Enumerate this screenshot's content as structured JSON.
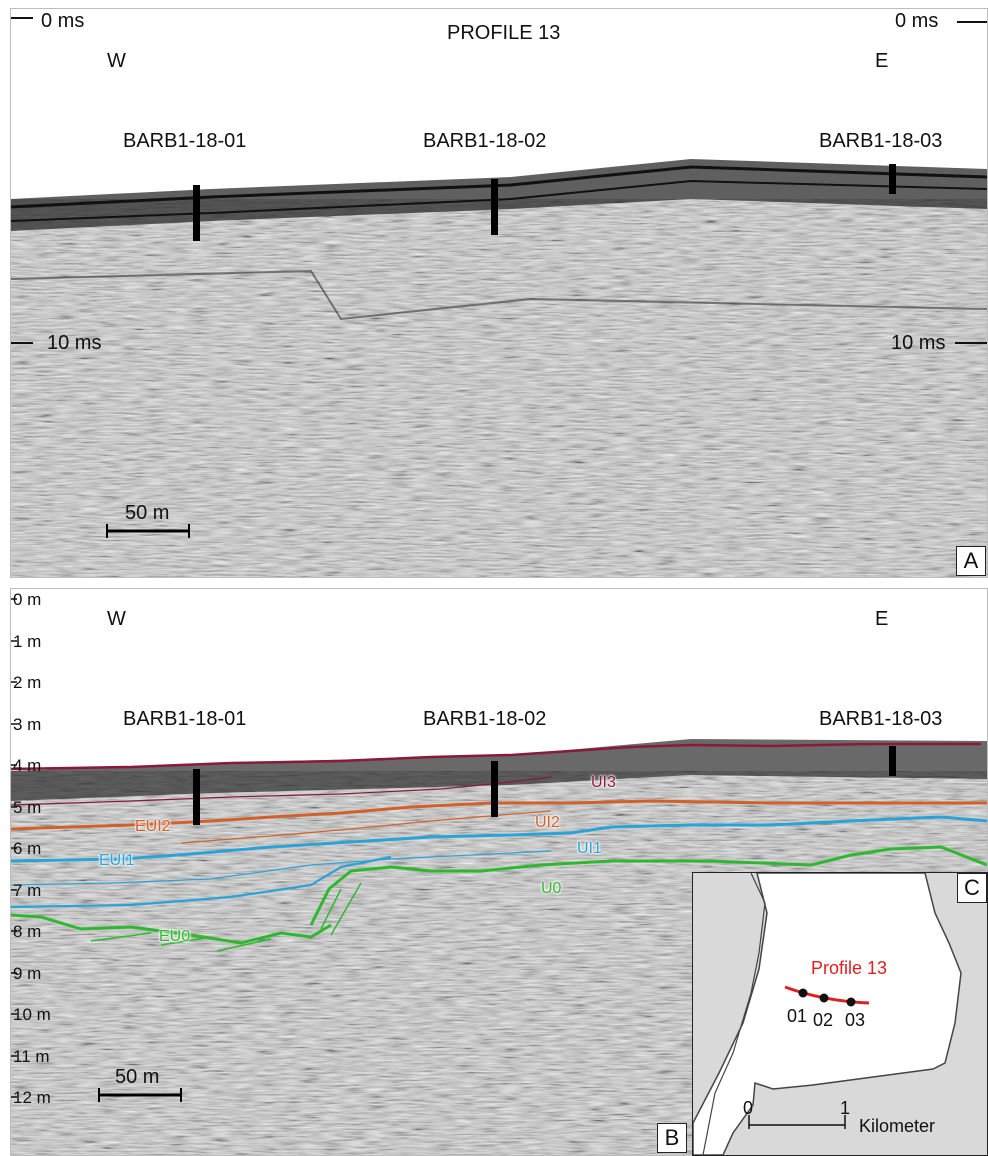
{
  "panel_a": {
    "title": "PROFILE 13",
    "top_left_label": "0 ms",
    "top_right_label": "0 ms",
    "mid_left_label": "10 ms",
    "mid_right_label": "10 ms",
    "west": "W",
    "east": "E",
    "cores": [
      "BARB1-18-01",
      "BARB1-18-02",
      "BARB1-18-03"
    ],
    "scale_label": "50 m",
    "panel_letter": "A"
  },
  "panel_b": {
    "west": "W",
    "east": "E",
    "depth_labels": [
      "0 m",
      "1 m",
      "2 m",
      "3 m",
      "4 m",
      "5 m",
      "6 m",
      "7 m",
      "8 m",
      "9 m",
      "10 m",
      "11 m",
      "12 m"
    ],
    "cores": [
      "BARB1-18-01",
      "BARB1-18-02",
      "BARB1-18-03"
    ],
    "scale_label": "50 m",
    "panel_letter": "B",
    "horizons": [
      {
        "label": "UI3",
        "color": "#8b1a3a"
      },
      {
        "label": "EUI2",
        "color": "#d2602a"
      },
      {
        "label": "UI2",
        "color": "#d2602a"
      },
      {
        "label": "EUI1",
        "color": "#29a3d8"
      },
      {
        "label": "UI1",
        "color": "#29a3d8"
      },
      {
        "label": "U0",
        "color": "#2fb82f"
      },
      {
        "label": "EU0",
        "color": "#2fb82f"
      }
    ]
  },
  "inset": {
    "panel_letter": "C",
    "profile_label": "Profile 13",
    "profile_color": "#e02020",
    "sites": [
      "01",
      "02",
      "03"
    ],
    "scale_start": "0",
    "scale_end": "1",
    "scale_unit": "Kilometer"
  }
}
